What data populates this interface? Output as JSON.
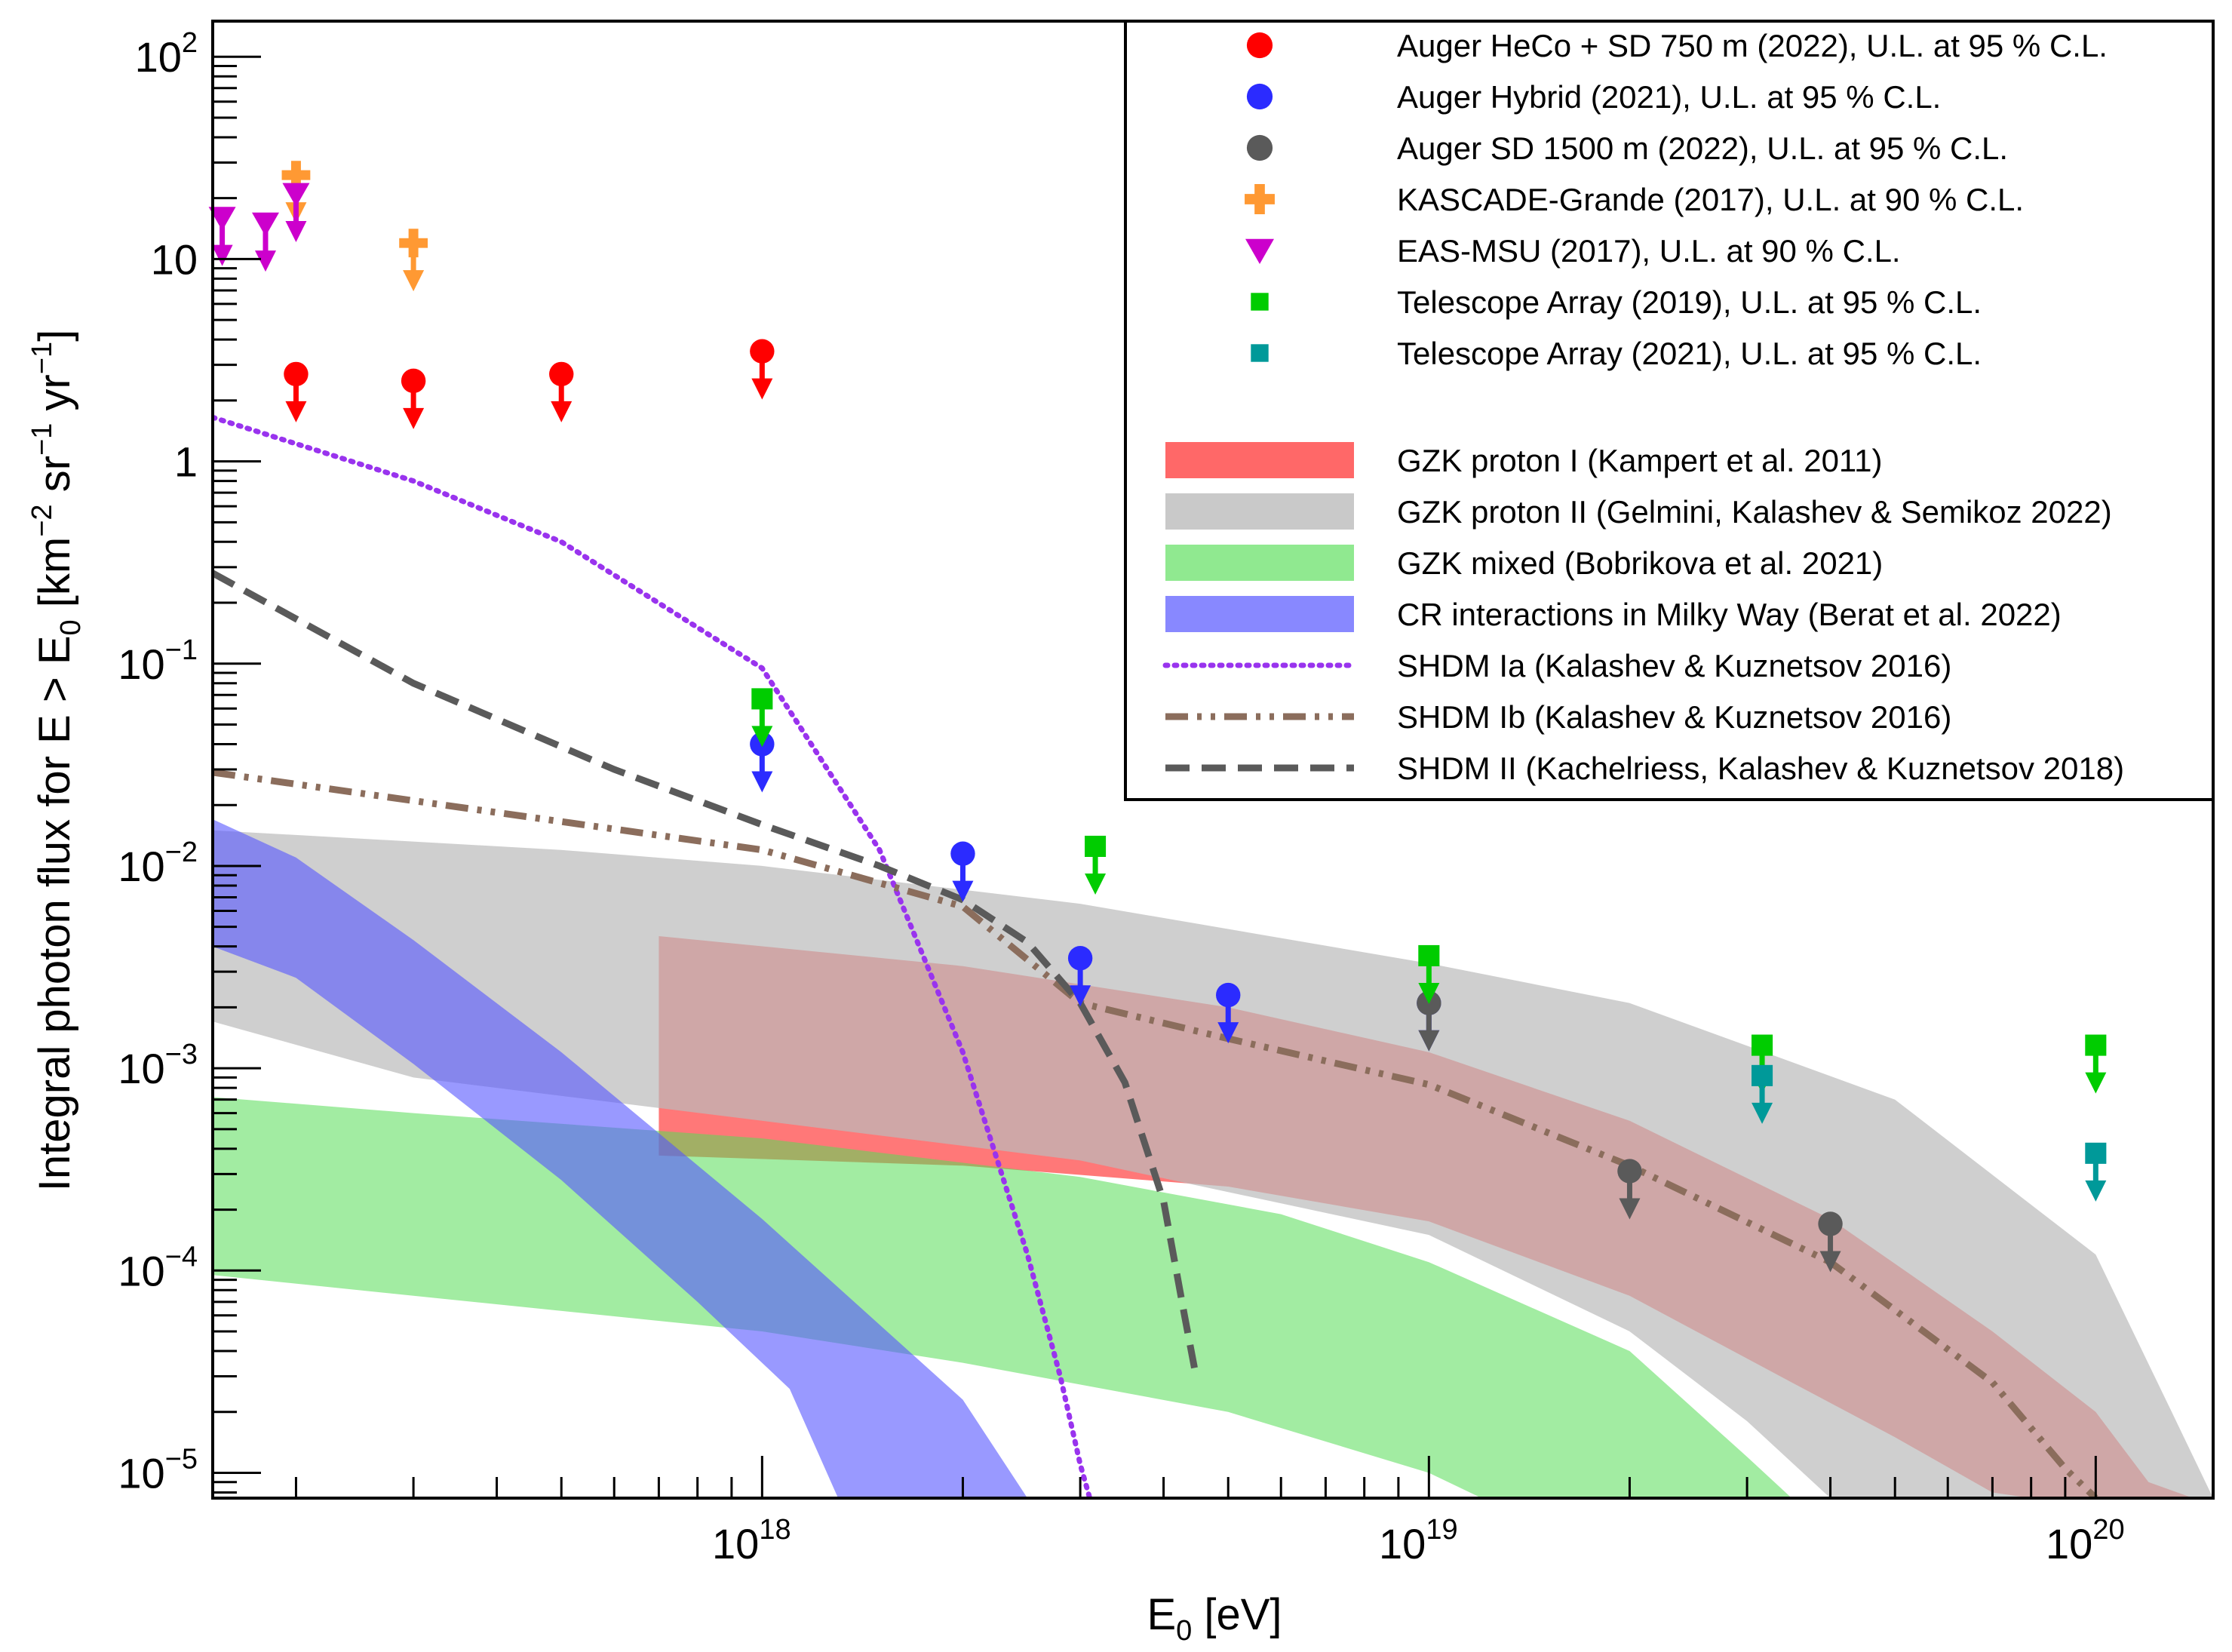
{
  "chart_data": {
    "type": "scatter",
    "xlabel": {
      "base": "E",
      "sub": "0",
      "rest": " [eV]"
    },
    "ylabel": {
      "p1": "Integral photon flux for E > E",
      "sub0": "0",
      "p2": " [km",
      "sup1": "−2",
      "p3": " sr",
      "sup2": "−1",
      "p4": " yr",
      "sup3": "−1",
      "p5": "]"
    },
    "x_axis": {
      "scale": "log",
      "range": [
        1.5e+17,
        1.5e+20
      ]
    },
    "y_axis": {
      "scale": "log",
      "range": [
        7.5e-06,
        150
      ]
    },
    "x_ticks": [
      {
        "base": "10",
        "exp": "18",
        "value": 1e+18
      },
      {
        "base": "10",
        "exp": "19",
        "value": 1e+19
      },
      {
        "base": "10",
        "exp": "20",
        "value": 1e+20
      }
    ],
    "y_ticks": [
      {
        "base": "10",
        "exp": "2",
        "value": 100
      },
      {
        "base": "10",
        "exp": "",
        "value": 10
      },
      {
        "base": "1",
        "exp": "",
        "value": 1
      },
      {
        "base": "10",
        "exp": "−1",
        "value": 0.1
      },
      {
        "base": "10",
        "exp": "−2",
        "value": 0.01
      },
      {
        "base": "10",
        "exp": "−3",
        "value": 0.001
      },
      {
        "base": "10",
        "exp": "−4",
        "value": 0.0001
      },
      {
        "base": "10",
        "exp": "−5",
        "value": 1e-05
      }
    ],
    "limits": [
      {
        "name": "Auger HeCo + SD 750 m (2022), U.L. at 95 % C.L.",
        "marker": "circle",
        "color": "#ff0000",
        "points": [
          [
            2e+17,
            2.7
          ],
          [
            3e+17,
            2.5
          ],
          [
            5e+17,
            2.7
          ],
          [
            1e+18,
            3.5
          ]
        ]
      },
      {
        "name": "Auger Hybrid (2021), U.L. at 95 % C.L.",
        "marker": "circle",
        "color": "#2b2bff",
        "points": [
          [
            1e+18,
            0.04
          ],
          [
            2e+18,
            0.0115
          ],
          [
            3e+18,
            0.0035
          ],
          [
            5e+18,
            0.0023
          ],
          [
            1e+19,
            0.0021
          ]
        ]
      },
      {
        "name": "Auger SD 1500 m (2022), U.L. at 95 % C.L.",
        "marker": "circle",
        "color": "#5a5a5a",
        "points": [
          [
            1e+19,
            0.0021
          ],
          [
            2e+19,
            0.00031
          ],
          [
            4e+19,
            0.00017
          ]
        ]
      },
      {
        "name": "KASCADE-Grande (2017), U.L. at 90 % C.L.",
        "marker": "cross",
        "color": "#ff9933",
        "points": [
          [
            2e+17,
            26
          ],
          [
            3e+17,
            12
          ]
        ]
      },
      {
        "name": "EAS-MSU (2017), U.L. at 90 % C.L.",
        "marker": "triangle",
        "color": "#cc00cc",
        "points": [
          [
            1.55e+17,
            16
          ],
          [
            1.8e+17,
            15
          ],
          [
            2e+17,
            21
          ]
        ]
      },
      {
        "name": "Telescope Array (2019), U.L. at 95 % C.L.",
        "marker": "square",
        "color": "#00cc00",
        "points": [
          [
            1e+18,
            0.067
          ],
          [
            3.16e+18,
            0.0125
          ],
          [
            1e+19,
            0.0036
          ],
          [
            3.16e+19,
            0.0013
          ],
          [
            1e+20,
            0.0013
          ]
        ]
      },
      {
        "name": "Telescope Array (2021), U.L. at 95 % C.L.",
        "marker": "square",
        "color": "#009999",
        "points": [
          [
            3.16e+19,
            0.00092
          ],
          [
            1e+20,
            0.00038
          ]
        ]
      }
    ],
    "bands": [
      {
        "name": "GZK proton I (Kampert et al. 2011)",
        "color": "#ff6060",
        "opacity": 0.85,
        "upper": [
          [
            7e+17,
            0.0045
          ],
          [
            2e+18,
            0.0032
          ],
          [
            5e+18,
            0.002
          ],
          [
            1e+19,
            0.0012
          ],
          [
            2e+19,
            0.00055
          ],
          [
            4e+19,
            0.00018
          ],
          [
            7e+19,
            5e-05
          ],
          [
            1e+20,
            2e-05
          ],
          [
            1.2e+20,
            9e-06
          ],
          [
            1.4e+20,
            7.5e-06
          ]
        ],
        "lower": [
          [
            7e+17,
            0.00037
          ],
          [
            2e+18,
            0.00033
          ],
          [
            5e+18,
            0.00026
          ],
          [
            1e+19,
            0.000175
          ],
          [
            2e+19,
            7.5e-05
          ],
          [
            3.5e+19,
            2.8e-05
          ],
          [
            5e+19,
            1.5e-05
          ],
          [
            7e+19,
            8e-06
          ],
          [
            8e+19,
            7.5e-06
          ]
        ]
      },
      {
        "name": "GZK proton II (Gelmini, Kalashev & Semikoz 2022)",
        "color": "#bbbbbb",
        "opacity": 0.7,
        "upper": [
          [
            1.5e+17,
            0.015
          ],
          [
            5e+17,
            0.012
          ],
          [
            1e+18,
            0.01
          ],
          [
            3e+18,
            0.0065
          ],
          [
            1e+19,
            0.0033
          ],
          [
            2e+19,
            0.0021
          ],
          [
            5e+19,
            0.0007
          ],
          [
            1e+20,
            0.00012
          ],
          [
            1.3e+20,
            2e-05
          ],
          [
            1.5e+20,
            7.5e-06
          ]
        ],
        "lower": [
          [
            1.5e+17,
            0.0017
          ],
          [
            3e+17,
            0.0009
          ],
          [
            1e+18,
            0.00055
          ],
          [
            3e+18,
            0.00035
          ],
          [
            1e+19,
            0.00015
          ],
          [
            2e+19,
            5e-05
          ],
          [
            3e+19,
            1.8e-05
          ],
          [
            4e+19,
            7.5e-06
          ]
        ]
      },
      {
        "name": "GZK mixed (Bobrikova et al. 2021)",
        "color": "#55dd55",
        "opacity": 0.55,
        "upper": [
          [
            1.5e+17,
            0.00072
          ],
          [
            3e+17,
            0.0006
          ],
          [
            1e+18,
            0.00045
          ],
          [
            3e+18,
            0.00029
          ],
          [
            6e+18,
            0.00019
          ],
          [
            1e+19,
            0.00011
          ],
          [
            2e+19,
            4e-05
          ],
          [
            3e+19,
            1.2e-05
          ],
          [
            3.5e+19,
            7.5e-06
          ]
        ],
        "lower": [
          [
            1.5e+17,
            9.5e-05
          ],
          [
            3e+17,
            7.5e-05
          ],
          [
            1e+18,
            5e-05
          ],
          [
            2e+18,
            3.5e-05
          ],
          [
            5e+18,
            2e-05
          ],
          [
            1e+19,
            1e-05
          ],
          [
            1.2e+19,
            7.5e-06
          ]
        ]
      },
      {
        "name": "CR interactions in Milky Way (Berat et al. 2022)",
        "color": "#5555ff",
        "opacity": 0.6,
        "upper": [
          [
            1.5e+17,
            0.017
          ],
          [
            2e+17,
            0.011
          ],
          [
            3e+17,
            0.0043
          ],
          [
            5e+17,
            0.0012
          ],
          [
            1e+18,
            0.00018
          ],
          [
            2e+18,
            2.3e-05
          ],
          [
            2.5e+18,
            7.5e-06
          ]
        ],
        "lower": [
          [
            1.5e+17,
            0.004
          ],
          [
            2e+17,
            0.0028
          ],
          [
            3e+17,
            0.00105
          ],
          [
            5e+17,
            0.00028
          ],
          [
            8e+17,
            7e-05
          ],
          [
            1.1e+18,
            2.6e-05
          ],
          [
            1.3e+18,
            7.5e-06
          ]
        ]
      }
    ],
    "curves": [
      {
        "name": "SHDM Ia (Kalashev & Kuznetsov 2016)",
        "color": "#9933ee",
        "style": "dotted",
        "points": [
          [
            1.5e+17,
            1.65
          ],
          [
            3e+17,
            0.8
          ],
          [
            5e+17,
            0.4
          ],
          [
            1e+18,
            0.095
          ],
          [
            1.5e+18,
            0.012
          ],
          [
            2e+18,
            0.0012
          ],
          [
            2.5e+18,
            0.00012
          ],
          [
            2.8e+18,
            3e-05
          ],
          [
            3e+18,
            1.1e-05
          ],
          [
            3.1e+18,
            7.5e-06
          ]
        ]
      },
      {
        "name": "SHDM Ib (Kalashev & Kuznetsov 2016)",
        "color": "#8b6d5c",
        "style": "dashdotdot",
        "points": [
          [
            1.5e+17,
            0.029
          ],
          [
            3e+17,
            0.021
          ],
          [
            1e+18,
            0.012
          ],
          [
            2e+18,
            0.0063
          ],
          [
            3e+18,
            0.0021
          ],
          [
            5e+18,
            0.0014
          ],
          [
            1e+19,
            0.00083
          ],
          [
            2e+19,
            0.00033
          ],
          [
            4e+19,
            0.00011
          ],
          [
            7e+19,
            2.8e-05
          ],
          [
            9e+19,
            1.05e-05
          ],
          [
            1e+20,
            7.5e-06
          ]
        ]
      },
      {
        "name": "SHDM II (Kachelriess, Kalashev & Kuznetsov 2018)",
        "color": "#5a5a5a",
        "style": "dashed",
        "points": [
          [
            1.5e+17,
            0.28
          ],
          [
            3e+17,
            0.08
          ],
          [
            6e+17,
            0.03
          ],
          [
            1e+18,
            0.016
          ],
          [
            1.5e+18,
            0.01
          ],
          [
            2e+18,
            0.0068
          ],
          [
            2.5e+18,
            0.0042
          ],
          [
            3e+18,
            0.0021
          ],
          [
            3.5e+18,
            0.00085
          ],
          [
            4e+18,
            0.00022
          ],
          [
            4.3e+18,
            6e-05
          ],
          [
            4.45e+18,
            3.3e-05
          ]
        ]
      }
    ],
    "legend": {
      "position": "top-right",
      "entries": [
        "Auger HeCo + SD 750 m (2022), U.L. at 95 % C.L.",
        "Auger Hybrid (2021), U.L. at 95 % C.L.",
        "Auger SD 1500 m (2022), U.L. at 95 % C.L.",
        "KASCADE-Grande (2017), U.L. at 90 % C.L.",
        "EAS-MSU (2017), U.L. at 90 % C.L.",
        "Telescope Array (2019), U.L. at 95 % C.L.",
        "Telescope Array (2021), U.L. at 95 % C.L.",
        "GZK proton I (Kampert et al. 2011)",
        "GZK proton II (Gelmini, Kalashev & Semikoz 2022)",
        "GZK mixed (Bobrikova et al. 2021)",
        "CR interactions in Milky Way (Berat et al. 2022)",
        "SHDM Ia (Kalashev & Kuznetsov 2016)",
        "SHDM Ib (Kalashev & Kuznetsov 2016)",
        "SHDM II (Kachelriess, Kalashev & Kuznetsov 2018)"
      ]
    }
  }
}
